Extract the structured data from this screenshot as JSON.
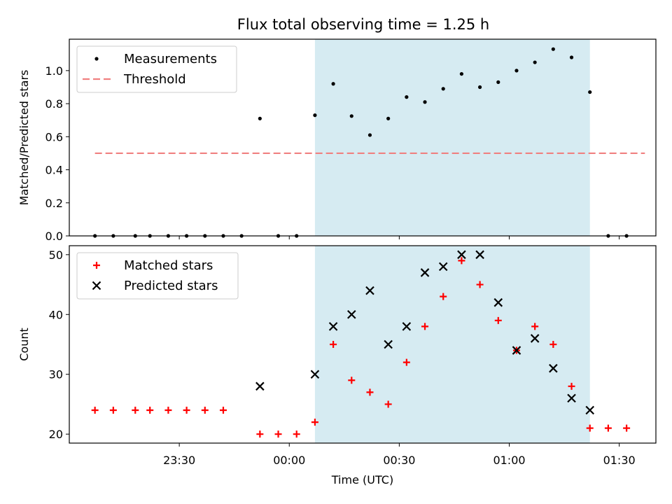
{
  "figure": {
    "title": "Flux total observing time = 1.25 h"
  },
  "chart_data": [
    {
      "type": "scatter",
      "title": "Flux total observing time = 1.25 h",
      "xlabel": "",
      "ylabel": "Matched/Predicted stars",
      "xlim": [
        "23:00",
        "01:40"
      ],
      "ylim": [
        0,
        1.19
      ],
      "yticks": [
        "0.0",
        "0.2",
        "0.4",
        "0.6",
        "0.8",
        "1.0"
      ],
      "shaded_span": [
        "00:07",
        "01:22"
      ],
      "legend_position": "upper-left",
      "series": [
        {
          "name": "Measurements",
          "marker": "dot",
          "color": "#000000",
          "points": [
            {
              "x": "23:07",
              "y": 0.0
            },
            {
              "x": "23:12",
              "y": 0.0
            },
            {
              "x": "23:18",
              "y": 0.0
            },
            {
              "x": "23:22",
              "y": 0.0
            },
            {
              "x": "23:27",
              "y": 0.0
            },
            {
              "x": "23:32",
              "y": 0.0
            },
            {
              "x": "23:37",
              "y": 0.0
            },
            {
              "x": "23:42",
              "y": 0.0
            },
            {
              "x": "23:47",
              "y": 0.0
            },
            {
              "x": "23:52",
              "y": 0.71
            },
            {
              "x": "23:57",
              "y": 0.0
            },
            {
              "x": "00:02",
              "y": 0.0
            },
            {
              "x": "00:07",
              "y": 0.73
            },
            {
              "x": "00:12",
              "y": 0.92
            },
            {
              "x": "00:17",
              "y": 0.725
            },
            {
              "x": "00:22",
              "y": 0.61
            },
            {
              "x": "00:27",
              "y": 0.71
            },
            {
              "x": "00:32",
              "y": 0.84
            },
            {
              "x": "00:37",
              "y": 0.81
            },
            {
              "x": "00:42",
              "y": 0.89
            },
            {
              "x": "00:47",
              "y": 0.98
            },
            {
              "x": "00:52",
              "y": 0.9
            },
            {
              "x": "00:57",
              "y": 0.93
            },
            {
              "x": "01:02",
              "y": 1.0
            },
            {
              "x": "01:07",
              "y": 1.05
            },
            {
              "x": "01:12",
              "y": 1.13
            },
            {
              "x": "01:17",
              "y": 1.08
            },
            {
              "x": "01:22",
              "y": 0.87
            },
            {
              "x": "01:27",
              "y": 0.0
            },
            {
              "x": "01:32",
              "y": 0.0
            }
          ]
        },
        {
          "name": "Threshold",
          "marker": "dashed-line",
          "color": "#f08080",
          "points": [
            {
              "x": "23:07",
              "y": 0.5
            },
            {
              "x": "01:37",
              "y": 0.5
            }
          ]
        }
      ]
    },
    {
      "type": "scatter",
      "title": "",
      "xlabel": "Time (UTC)",
      "ylabel": "Count",
      "xlim": [
        "23:00",
        "01:40"
      ],
      "ylim": [
        18.5,
        51.5
      ],
      "xticks": [
        "23:30",
        "00:00",
        "00:30",
        "01:00",
        "01:30"
      ],
      "yticks": [
        "20",
        "30",
        "40",
        "50"
      ],
      "shaded_span": [
        "00:07",
        "01:22"
      ],
      "legend_position": "upper-left",
      "series": [
        {
          "name": "Matched stars",
          "marker": "plus",
          "color": "#ff0000",
          "points": [
            {
              "x": "23:07",
              "y": 24
            },
            {
              "x": "23:12",
              "y": 24
            },
            {
              "x": "23:18",
              "y": 24
            },
            {
              "x": "23:22",
              "y": 24
            },
            {
              "x": "23:27",
              "y": 24
            },
            {
              "x": "23:32",
              "y": 24
            },
            {
              "x": "23:37",
              "y": 24
            },
            {
              "x": "23:42",
              "y": 24
            },
            {
              "x": "23:52",
              "y": 20
            },
            {
              "x": "23:57",
              "y": 20
            },
            {
              "x": "00:02",
              "y": 20
            },
            {
              "x": "00:07",
              "y": 22
            },
            {
              "x": "00:12",
              "y": 35
            },
            {
              "x": "00:17",
              "y": 29
            },
            {
              "x": "00:22",
              "y": 27
            },
            {
              "x": "00:27",
              "y": 25
            },
            {
              "x": "00:32",
              "y": 32
            },
            {
              "x": "00:37",
              "y": 38
            },
            {
              "x": "00:42",
              "y": 43
            },
            {
              "x": "00:47",
              "y": 49
            },
            {
              "x": "00:52",
              "y": 45
            },
            {
              "x": "00:57",
              "y": 39
            },
            {
              "x": "01:02",
              "y": 34
            },
            {
              "x": "01:07",
              "y": 38
            },
            {
              "x": "01:12",
              "y": 35
            },
            {
              "x": "01:17",
              "y": 28
            },
            {
              "x": "01:22",
              "y": 21
            },
            {
              "x": "01:27",
              "y": 21
            },
            {
              "x": "01:32",
              "y": 21
            }
          ]
        },
        {
          "name": "Predicted stars",
          "marker": "x",
          "color": "#000000",
          "points": [
            {
              "x": "23:52",
              "y": 28
            },
            {
              "x": "00:07",
              "y": 30
            },
            {
              "x": "00:12",
              "y": 38
            },
            {
              "x": "00:17",
              "y": 40
            },
            {
              "x": "00:22",
              "y": 44
            },
            {
              "x": "00:27",
              "y": 35
            },
            {
              "x": "00:32",
              "y": 38
            },
            {
              "x": "00:37",
              "y": 47
            },
            {
              "x": "00:42",
              "y": 48
            },
            {
              "x": "00:47",
              "y": 50
            },
            {
              "x": "00:52",
              "y": 50
            },
            {
              "x": "00:57",
              "y": 42
            },
            {
              "x": "01:02",
              "y": 34
            },
            {
              "x": "01:07",
              "y": 36
            },
            {
              "x": "01:12",
              "y": 31
            },
            {
              "x": "01:17",
              "y": 26
            },
            {
              "x": "01:22",
              "y": 24
            }
          ]
        }
      ]
    }
  ]
}
